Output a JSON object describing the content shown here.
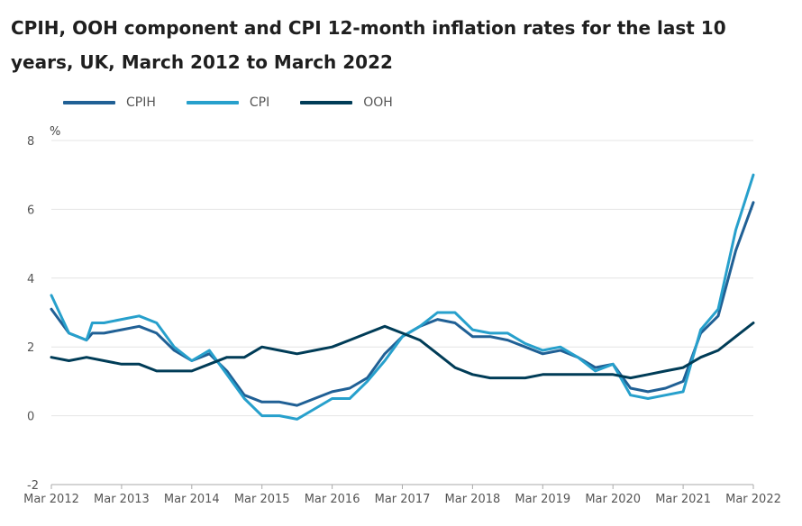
{
  "chart_data": {
    "type": "line",
    "title": "CPIH, OOH component and CPI 12-month inflation rates for the last 10 years, UK, March 2012 to March 2022",
    "xlabel": "",
    "ylabel": "%",
    "ylim": [
      -2,
      8
    ],
    "yticks": [
      "-2",
      "0",
      "2",
      "4",
      "6",
      "8"
    ],
    "yticks_values": [
      -2,
      0,
      2,
      4,
      6,
      8
    ],
    "xlim": [
      "2012-03",
      "2022-03"
    ],
    "xticks": [
      "Mar 2012",
      "Mar 2013",
      "Mar 2014",
      "Mar 2015",
      "Mar 2016",
      "Mar 2017",
      "Mar 2018",
      "Mar 2019",
      "Mar 2020",
      "Mar 2021",
      "Mar 2022"
    ],
    "xticks_values": [
      "2012-03",
      "2013-03",
      "2014-03",
      "2015-03",
      "2016-03",
      "2017-03",
      "2018-03",
      "2019-03",
      "2020-03",
      "2021-03",
      "2022-03"
    ],
    "grid": true,
    "legend_position": "top-left",
    "series": [
      {
        "name": "CPIH",
        "color": "#206095",
        "points": [
          [
            "2012-03",
            3.1
          ],
          [
            "2012-06",
            2.4
          ],
          [
            "2012-09",
            2.2
          ],
          [
            "2012-10",
            2.4
          ],
          [
            "2012-12",
            2.4
          ],
          [
            "2013-03",
            2.5
          ],
          [
            "2013-06",
            2.6
          ],
          [
            "2013-09",
            2.4
          ],
          [
            "2013-12",
            1.9
          ],
          [
            "2014-03",
            1.6
          ],
          [
            "2014-06",
            1.8
          ],
          [
            "2014-09",
            1.3
          ],
          [
            "2014-12",
            0.6
          ],
          [
            "2015-03",
            0.4
          ],
          [
            "2015-06",
            0.4
          ],
          [
            "2015-09",
            0.3
          ],
          [
            "2015-12",
            0.5
          ],
          [
            "2016-03",
            0.7
          ],
          [
            "2016-06",
            0.8
          ],
          [
            "2016-09",
            1.1
          ],
          [
            "2016-12",
            1.8
          ],
          [
            "2017-03",
            2.3
          ],
          [
            "2017-06",
            2.6
          ],
          [
            "2017-09",
            2.8
          ],
          [
            "2017-12",
            2.7
          ],
          [
            "2018-03",
            2.3
          ],
          [
            "2018-06",
            2.3
          ],
          [
            "2018-09",
            2.2
          ],
          [
            "2018-12",
            2.0
          ],
          [
            "2019-03",
            1.8
          ],
          [
            "2019-06",
            1.9
          ],
          [
            "2019-09",
            1.7
          ],
          [
            "2019-12",
            1.4
          ],
          [
            "2020-03",
            1.5
          ],
          [
            "2020-06",
            0.8
          ],
          [
            "2020-09",
            0.7
          ],
          [
            "2020-12",
            0.8
          ],
          [
            "2021-03",
            1.0
          ],
          [
            "2021-06",
            2.4
          ],
          [
            "2021-09",
            2.9
          ],
          [
            "2021-12",
            4.8
          ],
          [
            "2022-03",
            6.2
          ]
        ]
      },
      {
        "name": "CPI",
        "color": "#27a0cc",
        "points": [
          [
            "2012-03",
            3.5
          ],
          [
            "2012-06",
            2.4
          ],
          [
            "2012-09",
            2.2
          ],
          [
            "2012-10",
            2.7
          ],
          [
            "2012-12",
            2.7
          ],
          [
            "2013-03",
            2.8
          ],
          [
            "2013-06",
            2.9
          ],
          [
            "2013-09",
            2.7
          ],
          [
            "2013-12",
            2.0
          ],
          [
            "2014-03",
            1.6
          ],
          [
            "2014-06",
            1.9
          ],
          [
            "2014-09",
            1.2
          ],
          [
            "2014-12",
            0.5
          ],
          [
            "2015-03",
            0.0
          ],
          [
            "2015-06",
            0.0
          ],
          [
            "2015-09",
            -0.1
          ],
          [
            "2015-12",
            0.2
          ],
          [
            "2016-03",
            0.5
          ],
          [
            "2016-06",
            0.5
          ],
          [
            "2016-09",
            1.0
          ],
          [
            "2016-12",
            1.6
          ],
          [
            "2017-03",
            2.3
          ],
          [
            "2017-06",
            2.6
          ],
          [
            "2017-09",
            3.0
          ],
          [
            "2017-12",
            3.0
          ],
          [
            "2018-03",
            2.5
          ],
          [
            "2018-06",
            2.4
          ],
          [
            "2018-09",
            2.4
          ],
          [
            "2018-12",
            2.1
          ],
          [
            "2019-03",
            1.9
          ],
          [
            "2019-06",
            2.0
          ],
          [
            "2019-09",
            1.7
          ],
          [
            "2019-12",
            1.3
          ],
          [
            "2020-03",
            1.5
          ],
          [
            "2020-06",
            0.6
          ],
          [
            "2020-09",
            0.5
          ],
          [
            "2020-12",
            0.6
          ],
          [
            "2021-03",
            0.7
          ],
          [
            "2021-06",
            2.5
          ],
          [
            "2021-09",
            3.1
          ],
          [
            "2021-12",
            5.4
          ],
          [
            "2022-03",
            7.0
          ]
        ]
      },
      {
        "name": "OOH",
        "color": "#003c57",
        "points": [
          [
            "2012-03",
            1.7
          ],
          [
            "2012-06",
            1.6
          ],
          [
            "2012-09",
            1.7
          ],
          [
            "2012-12",
            1.6
          ],
          [
            "2013-03",
            1.5
          ],
          [
            "2013-06",
            1.5
          ],
          [
            "2013-09",
            1.3
          ],
          [
            "2013-12",
            1.3
          ],
          [
            "2014-03",
            1.3
          ],
          [
            "2014-06",
            1.5
          ],
          [
            "2014-09",
            1.7
          ],
          [
            "2014-12",
            1.7
          ],
          [
            "2015-03",
            2.0
          ],
          [
            "2015-06",
            1.9
          ],
          [
            "2015-09",
            1.8
          ],
          [
            "2015-12",
            1.9
          ],
          [
            "2016-03",
            2.0
          ],
          [
            "2016-06",
            2.2
          ],
          [
            "2016-09",
            2.4
          ],
          [
            "2016-12",
            2.6
          ],
          [
            "2017-03",
            2.4
          ],
          [
            "2017-06",
            2.2
          ],
          [
            "2017-09",
            1.8
          ],
          [
            "2017-12",
            1.4
          ],
          [
            "2018-03",
            1.2
          ],
          [
            "2018-06",
            1.1
          ],
          [
            "2018-09",
            1.1
          ],
          [
            "2018-12",
            1.1
          ],
          [
            "2019-03",
            1.2
          ],
          [
            "2019-06",
            1.2
          ],
          [
            "2019-09",
            1.2
          ],
          [
            "2019-12",
            1.2
          ],
          [
            "2020-03",
            1.2
          ],
          [
            "2020-06",
            1.1
          ],
          [
            "2020-09",
            1.2
          ],
          [
            "2020-12",
            1.3
          ],
          [
            "2021-03",
            1.4
          ],
          [
            "2021-06",
            1.7
          ],
          [
            "2021-09",
            1.9
          ],
          [
            "2021-12",
            2.3
          ],
          [
            "2022-03",
            2.7
          ]
        ]
      }
    ]
  }
}
